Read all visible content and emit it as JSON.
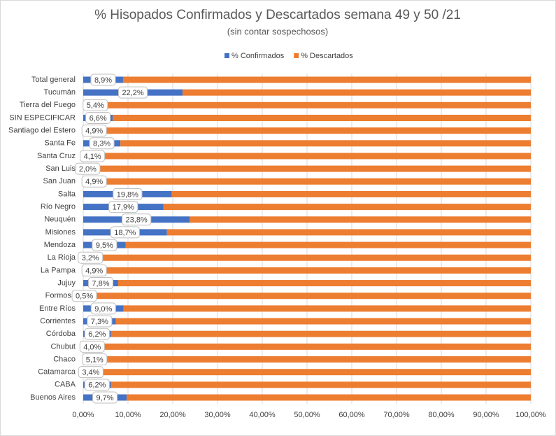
{
  "chart_data": {
    "type": "stacked-barh",
    "title": "% Hisopados Confirmados y Descartados semana 49 y 50 /21",
    "subtitle": "(sin contar sospechosos)",
    "categories": [
      "Total general",
      "Tucumán",
      "Tierra del Fuego",
      "SIN ESPECIFICAR",
      "Santiago del Estero",
      "Santa Fe",
      "Santa Cruz",
      "San Luis",
      "San Juan",
      "Salta",
      "Río Negro",
      "Neuquén",
      "Misiones",
      "Mendoza",
      "La Rioja",
      "La Pampa",
      "Jujuy",
      "Formosa",
      "Entre Ríos",
      "Corrientes",
      "Córdoba",
      "Chubut",
      "Chaco",
      "Catamarca",
      "CABA",
      "Buenos Aires"
    ],
    "series": [
      {
        "name": "% Confirmados",
        "color": "#4472c4",
        "values": [
          8.9,
          22.2,
          5.4,
          6.6,
          4.9,
          8.3,
          4.1,
          2.0,
          4.9,
          19.8,
          17.9,
          23.8,
          18.7,
          9.5,
          3.2,
          4.9,
          7.8,
          0.5,
          9.0,
          7.3,
          6.2,
          4.0,
          5.1,
          3.4,
          6.2,
          9.7
        ],
        "value_labels": [
          "8,9%",
          "22,2%",
          "5,4%",
          "6,6%",
          "4,9%",
          "8,3%",
          "4,1%",
          "2,0%",
          "4,9%",
          "19,8%",
          "17,9%",
          "23,8%",
          "18,7%",
          "9,5%",
          "3,2%",
          "4,9%",
          "7,8%",
          "0,5%",
          "9,0%",
          "7,3%",
          "6,2%",
          "4,0%",
          "5,1%",
          "3,4%",
          "6,2%",
          "9,7%"
        ]
      },
      {
        "name": "% Descartados",
        "color": "#ed7d31",
        "values": [
          91.1,
          77.8,
          94.6,
          93.4,
          95.1,
          91.7,
          95.9,
          98.0,
          95.1,
          80.2,
          82.1,
          76.2,
          81.3,
          90.5,
          96.8,
          95.1,
          92.2,
          99.5,
          91.0,
          92.7,
          93.8,
          96.0,
          94.9,
          96.6,
          93.8,
          90.3
        ]
      }
    ],
    "xlim": [
      0,
      100
    ],
    "xticks": [
      {
        "value": 0,
        "label": "0,00%"
      },
      {
        "value": 10,
        "label": "10,00%"
      },
      {
        "value": 20,
        "label": "20,00%"
      },
      {
        "value": 30,
        "label": "30,00%"
      },
      {
        "value": 40,
        "label": "40,00%"
      },
      {
        "value": 50,
        "label": "50,00%"
      },
      {
        "value": 60,
        "label": "60,00%"
      },
      {
        "value": 70,
        "label": "70,00%"
      },
      {
        "value": 80,
        "label": "80,00%"
      },
      {
        "value": 90,
        "label": "90,00%"
      },
      {
        "value": 100,
        "label": "100,00%"
      }
    ],
    "grid": true
  }
}
